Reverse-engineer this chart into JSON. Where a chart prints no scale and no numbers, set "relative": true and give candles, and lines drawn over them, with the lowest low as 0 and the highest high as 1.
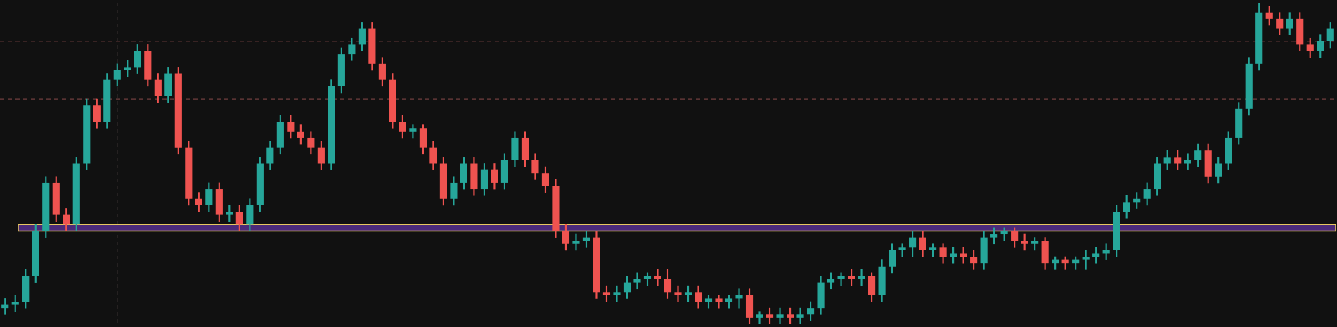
{
  "chart_data": {
    "type": "candlestick",
    "relative": true,
    "categories": [
      null,
      null,
      null,
      null,
      null,
      null,
      null,
      null,
      null,
      null,
      null,
      null,
      null,
      null,
      null,
      null,
      null,
      null,
      null,
      null,
      null,
      null,
      null,
      null,
      null,
      null,
      null,
      null,
      null,
      null,
      null,
      null,
      null,
      null,
      null,
      null,
      null,
      null,
      null,
      null,
      null,
      null,
      null,
      null,
      null,
      null,
      null,
      null,
      null,
      null,
      null,
      null,
      null,
      null,
      null,
      null,
      null,
      null,
      null,
      null,
      null,
      null,
      null,
      null,
      null,
      null,
      null,
      null,
      null,
      null,
      null,
      null,
      null,
      null,
      null,
      null,
      null,
      null,
      null,
      null,
      null,
      null,
      null,
      null,
      null,
      null,
      null,
      null,
      null,
      null,
      null,
      null,
      null,
      null,
      null,
      null,
      null,
      null,
      null,
      null,
      null,
      null,
      null,
      null,
      null,
      null,
      null,
      null,
      null,
      null,
      null,
      null,
      null,
      null,
      null,
      null,
      null,
      null,
      null,
      null,
      null,
      null,
      null,
      null,
      null,
      null,
      null,
      null,
      null,
      null,
      null
    ],
    "ohlc": [
      [
        0.05,
        0.08,
        0.03,
        0.06
      ],
      [
        0.06,
        0.09,
        0.04,
        0.07
      ],
      [
        0.07,
        0.17,
        0.05,
        0.15
      ],
      [
        0.15,
        0.31,
        0.13,
        0.29
      ],
      [
        0.29,
        0.46,
        0.27,
        0.44
      ],
      [
        0.44,
        0.46,
        0.32,
        0.34
      ],
      [
        0.34,
        0.36,
        0.29,
        0.31
      ],
      [
        0.31,
        0.52,
        0.29,
        0.5
      ],
      [
        0.5,
        0.7,
        0.48,
        0.68
      ],
      [
        0.68,
        0.7,
        0.61,
        0.63
      ],
      [
        0.63,
        0.78,
        0.61,
        0.76
      ],
      [
        0.76,
        0.81,
        0.74,
        0.79
      ],
      [
        0.79,
        0.82,
        0.77,
        0.8
      ],
      [
        0.8,
        0.87,
        0.78,
        0.85
      ],
      [
        0.85,
        0.87,
        0.74,
        0.76
      ],
      [
        0.76,
        0.78,
        0.69,
        0.71
      ],
      [
        0.71,
        0.8,
        0.69,
        0.78
      ],
      [
        0.78,
        0.8,
        0.53,
        0.55
      ],
      [
        0.55,
        0.57,
        0.37,
        0.39
      ],
      [
        0.39,
        0.41,
        0.35,
        0.37
      ],
      [
        0.37,
        0.44,
        0.35,
        0.42
      ],
      [
        0.42,
        0.44,
        0.32,
        0.34
      ],
      [
        0.34,
        0.37,
        0.32,
        0.35
      ],
      [
        0.35,
        0.37,
        0.29,
        0.31
      ],
      [
        0.31,
        0.39,
        0.29,
        0.37
      ],
      [
        0.37,
        0.52,
        0.35,
        0.5
      ],
      [
        0.5,
        0.57,
        0.48,
        0.55
      ],
      [
        0.55,
        0.65,
        0.53,
        0.63
      ],
      [
        0.63,
        0.65,
        0.58,
        0.6
      ],
      [
        0.6,
        0.62,
        0.56,
        0.58
      ],
      [
        0.58,
        0.6,
        0.53,
        0.55
      ],
      [
        0.55,
        0.57,
        0.48,
        0.5
      ],
      [
        0.5,
        0.76,
        0.48,
        0.74
      ],
      [
        0.74,
        0.86,
        0.72,
        0.84
      ],
      [
        0.84,
        0.89,
        0.82,
        0.87
      ],
      [
        0.87,
        0.94,
        0.85,
        0.92
      ],
      [
        0.92,
        0.94,
        0.79,
        0.81
      ],
      [
        0.81,
        0.83,
        0.74,
        0.76
      ],
      [
        0.76,
        0.78,
        0.61,
        0.63
      ],
      [
        0.63,
        0.65,
        0.58,
        0.6
      ],
      [
        0.6,
        0.62,
        0.58,
        0.61
      ],
      [
        0.61,
        0.62,
        0.53,
        0.55
      ],
      [
        0.55,
        0.57,
        0.48,
        0.5
      ],
      [
        0.5,
        0.52,
        0.37,
        0.39
      ],
      [
        0.39,
        0.46,
        0.37,
        0.44
      ],
      [
        0.44,
        0.52,
        0.42,
        0.5
      ],
      [
        0.5,
        0.52,
        0.4,
        0.42
      ],
      [
        0.42,
        0.5,
        0.4,
        0.48
      ],
      [
        0.48,
        0.5,
        0.42,
        0.44
      ],
      [
        0.44,
        0.53,
        0.42,
        0.51
      ],
      [
        0.51,
        0.6,
        0.49,
        0.58
      ],
      [
        0.58,
        0.6,
        0.49,
        0.51
      ],
      [
        0.51,
        0.53,
        0.45,
        0.47
      ],
      [
        0.47,
        0.49,
        0.41,
        0.43
      ],
      [
        0.43,
        0.45,
        0.27,
        0.29
      ],
      [
        0.29,
        0.31,
        0.23,
        0.25
      ],
      [
        0.25,
        0.28,
        0.23,
        0.26
      ],
      [
        0.26,
        0.29,
        0.24,
        0.27
      ],
      [
        0.27,
        0.29,
        0.08,
        0.1
      ],
      [
        0.1,
        0.12,
        0.07,
        0.09
      ],
      [
        0.09,
        0.12,
        0.07,
        0.1
      ],
      [
        0.1,
        0.15,
        0.08,
        0.13
      ],
      [
        0.13,
        0.16,
        0.11,
        0.14
      ],
      [
        0.14,
        0.16,
        0.12,
        0.15
      ],
      [
        0.15,
        0.17,
        0.12,
        0.14
      ],
      [
        0.14,
        0.17,
        0.08,
        0.1
      ],
      [
        0.1,
        0.12,
        0.07,
        0.09
      ],
      [
        0.09,
        0.12,
        0.07,
        0.1
      ],
      [
        0.1,
        0.12,
        0.05,
        0.07
      ],
      [
        0.07,
        0.09,
        0.05,
        0.08
      ],
      [
        0.08,
        0.09,
        0.05,
        0.07
      ],
      [
        0.07,
        0.09,
        0.05,
        0.08
      ],
      [
        0.08,
        0.11,
        0.05,
        0.09
      ],
      [
        0.09,
        0.11,
        0.0,
        0.02
      ],
      [
        0.02,
        0.04,
        0.0,
        0.03
      ],
      [
        0.03,
        0.05,
        0.0,
        0.02
      ],
      [
        0.02,
        0.05,
        0.0,
        0.03
      ],
      [
        0.03,
        0.05,
        0.0,
        0.02
      ],
      [
        0.02,
        0.05,
        0.0,
        0.03
      ],
      [
        0.03,
        0.07,
        0.01,
        0.05
      ],
      [
        0.05,
        0.15,
        0.03,
        0.13
      ],
      [
        0.13,
        0.16,
        0.11,
        0.14
      ],
      [
        0.14,
        0.16,
        0.12,
        0.15
      ],
      [
        0.15,
        0.17,
        0.12,
        0.14
      ],
      [
        0.14,
        0.17,
        0.12,
        0.15
      ],
      [
        0.15,
        0.16,
        0.07,
        0.09
      ],
      [
        0.09,
        0.2,
        0.07,
        0.18
      ],
      [
        0.18,
        0.25,
        0.16,
        0.23
      ],
      [
        0.23,
        0.25,
        0.21,
        0.24
      ],
      [
        0.24,
        0.29,
        0.21,
        0.27
      ],
      [
        0.27,
        0.29,
        0.21,
        0.23
      ],
      [
        0.23,
        0.25,
        0.21,
        0.24
      ],
      [
        0.24,
        0.25,
        0.19,
        0.21
      ],
      [
        0.21,
        0.24,
        0.19,
        0.22
      ],
      [
        0.22,
        0.24,
        0.19,
        0.21
      ],
      [
        0.21,
        0.23,
        0.17,
        0.19
      ],
      [
        0.19,
        0.29,
        0.17,
        0.27
      ],
      [
        0.27,
        0.3,
        0.25,
        0.28
      ],
      [
        0.28,
        0.3,
        0.26,
        0.29
      ],
      [
        0.29,
        0.3,
        0.24,
        0.26
      ],
      [
        0.26,
        0.28,
        0.23,
        0.25
      ],
      [
        0.25,
        0.27,
        0.23,
        0.26
      ],
      [
        0.26,
        0.27,
        0.17,
        0.19
      ],
      [
        0.19,
        0.21,
        0.17,
        0.2
      ],
      [
        0.2,
        0.21,
        0.17,
        0.19
      ],
      [
        0.19,
        0.21,
        0.17,
        0.2
      ],
      [
        0.2,
        0.23,
        0.17,
        0.21
      ],
      [
        0.21,
        0.24,
        0.19,
        0.22
      ],
      [
        0.22,
        0.25,
        0.2,
        0.23
      ],
      [
        0.23,
        0.37,
        0.21,
        0.35
      ],
      [
        0.35,
        0.4,
        0.33,
        0.38
      ],
      [
        0.38,
        0.41,
        0.36,
        0.39
      ],
      [
        0.39,
        0.44,
        0.37,
        0.42
      ],
      [
        0.42,
        0.52,
        0.4,
        0.5
      ],
      [
        0.5,
        0.54,
        0.48,
        0.52
      ],
      [
        0.52,
        0.54,
        0.48,
        0.5
      ],
      [
        0.5,
        0.53,
        0.48,
        0.51
      ],
      [
        0.51,
        0.56,
        0.49,
        0.54
      ],
      [
        0.54,
        0.56,
        0.44,
        0.46
      ],
      [
        0.46,
        0.52,
        0.44,
        0.5
      ],
      [
        0.5,
        0.6,
        0.48,
        0.58
      ],
      [
        0.58,
        0.69,
        0.56,
        0.67
      ],
      [
        0.67,
        0.83,
        0.65,
        0.81
      ],
      [
        0.81,
        1.0,
        0.79,
        0.97
      ],
      [
        0.97,
        0.99,
        0.93,
        0.95
      ],
      [
        0.95,
        0.97,
        0.9,
        0.92
      ],
      [
        0.92,
        0.97,
        0.9,
        0.95
      ],
      [
        0.95,
        0.97,
        0.85,
        0.87
      ],
      [
        0.87,
        0.89,
        0.83,
        0.85
      ],
      [
        0.85,
        0.9,
        0.83,
        0.88
      ],
      [
        0.88,
        0.94,
        0.86,
        0.92
      ]
    ],
    "ref_lines": [
      {
        "axis": "y",
        "value": 0.88,
        "color": "#8a4a4a",
        "line_style": "dashed"
      },
      {
        "axis": "y",
        "value": 0.7,
        "color": "#8a4a4a",
        "line_style": "dashed"
      }
    ],
    "bands": [
      {
        "axis": "y",
        "from": 0.29,
        "to": 0.31,
        "color": "#4b2a7a"
      }
    ]
  }
}
